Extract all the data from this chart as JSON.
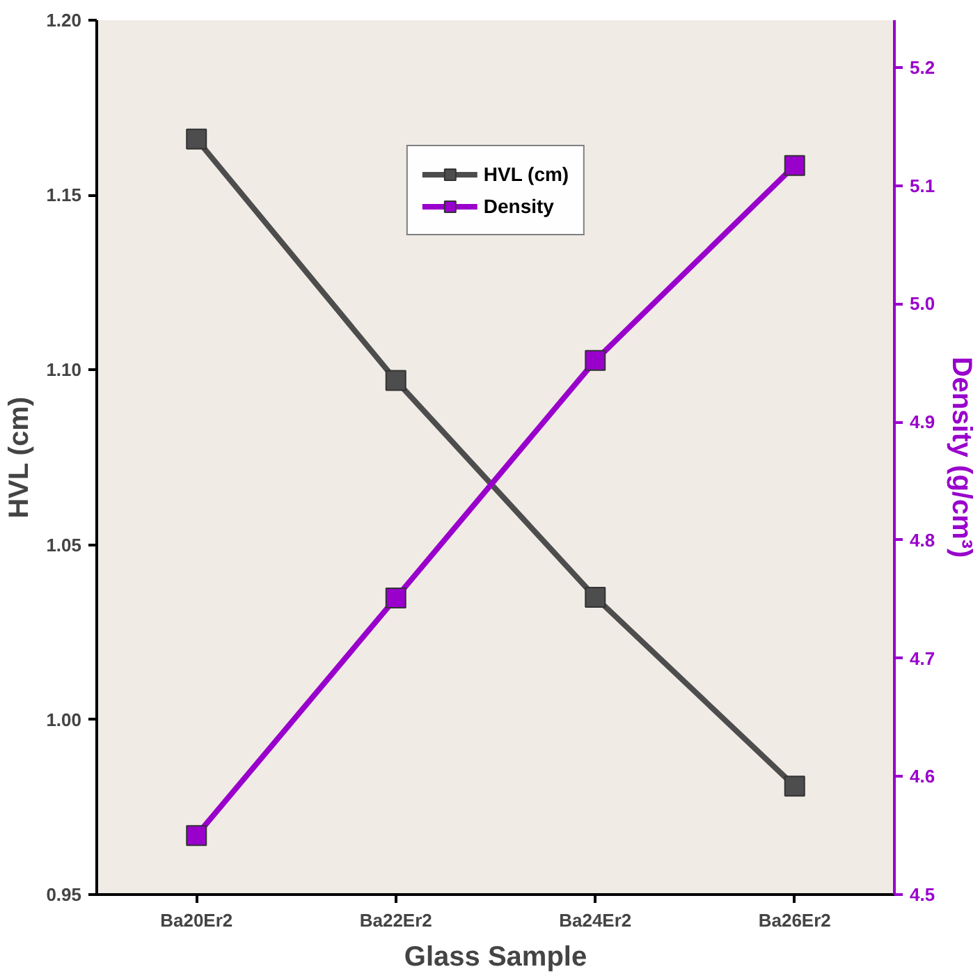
{
  "chart_data": {
    "type": "line",
    "xlabel": "Glass Sample",
    "ylabel": "HVL (cm)",
    "y2label": "Density (g/cm³)",
    "categories": [
      "Ba20Er2",
      "Ba22Er2",
      "Ba24Er2",
      "Ba26Er2"
    ],
    "series": [
      {
        "name": "HVL (cm)",
        "color": "#4d4d4d",
        "values": [
          1.166,
          1.097,
          1.035,
          0.981
        ]
      },
      {
        "name": "Density",
        "color": "#9900cc",
        "axis": "y2",
        "values": [
          4.55,
          4.751,
          4.952,
          5.117
        ]
      }
    ],
    "ylim": [
      0.95,
      1.2
    ],
    "yticks": [
      0.95,
      {
        "value": 1.0,
        "label": "1.00"
      },
      1.05,
      {
        "value": 1.1,
        "label": "1.10"
      },
      1.15,
      {
        "value": 1.2,
        "label": "1.20"
      }
    ],
    "y2lim": [
      4.5,
      5.24
    ],
    "y2ticks": [
      4.5,
      4.6,
      4.7,
      4.8,
      4.9,
      {
        "value": 5.0,
        "label": "5.0"
      },
      5.1,
      5.2
    ],
    "marker": "square",
    "line_style": "solid",
    "legend": "top",
    "grid": false
  }
}
